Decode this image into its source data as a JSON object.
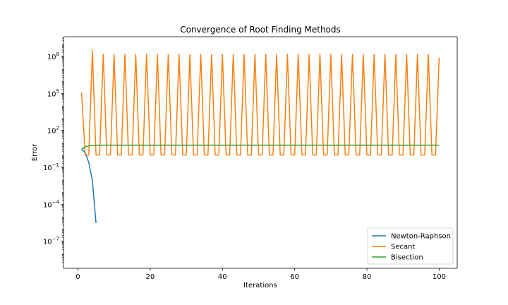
{
  "chart_data": {
    "type": "line",
    "title": "Convergence of Root Finding Methods",
    "xlabel": "Iterations",
    "ylabel": "Error",
    "xlim": [
      -4,
      105
    ],
    "ylim_log10": [
      -9.2,
      9.6
    ],
    "yscale": "log",
    "grid": false,
    "legend_position": "lower-right",
    "x_ticks": [
      {
        "value": 0,
        "label": "0"
      },
      {
        "value": 20,
        "label": "20"
      },
      {
        "value": 40,
        "label": "40"
      },
      {
        "value": 60,
        "label": "60"
      },
      {
        "value": 80,
        "label": "80"
      },
      {
        "value": 100,
        "label": "100"
      }
    ],
    "y_ticks": [
      {
        "exp": -7,
        "label_base": "10",
        "label_exp": "−7"
      },
      {
        "exp": -4,
        "label_base": "10",
        "label_exp": "−4"
      },
      {
        "exp": -1,
        "label_base": "10",
        "label_exp": "−1"
      },
      {
        "exp": 2,
        "label_base": "10",
        "label_exp": "2"
      },
      {
        "exp": 5,
        "label_base": "10",
        "label_exp": "5"
      },
      {
        "exp": 8,
        "label_base": "10",
        "label_exp": "8"
      }
    ],
    "series": [
      {
        "name": "Newton-Raphson",
        "color": "#1f77b4",
        "points": [
          [
            1,
            3.0
          ],
          [
            2,
            1.5
          ],
          [
            3,
            0.25
          ],
          [
            4,
            0.008
          ],
          [
            5,
            3e-06
          ]
        ]
      },
      {
        "name": "Secant",
        "color": "#ff7f0e",
        "first_points": [
          [
            1,
            120000
          ],
          [
            2,
            1.0
          ],
          [
            3,
            1.0
          ],
          [
            4,
            300000000
          ]
        ],
        "cycle": {
          "start": 4,
          "end": 100,
          "period": 3,
          "low": 1.0,
          "high": 150000000,
          "last": 80000000
        }
      },
      {
        "name": "Bisection",
        "color": "#2ca02c",
        "points": [
          [
            1,
            3.0
          ],
          [
            2,
            4.5
          ],
          [
            3,
            5.5
          ],
          [
            4,
            6.0
          ],
          [
            5,
            6.1
          ],
          [
            6,
            6.2
          ],
          [
            100,
            6.2
          ]
        ]
      }
    ]
  }
}
